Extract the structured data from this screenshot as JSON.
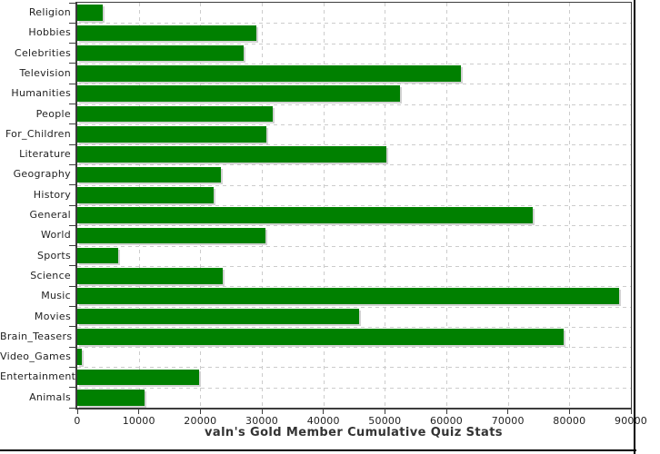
{
  "chart_data": {
    "type": "bar",
    "orientation": "horizontal",
    "title": "valn's Gold Member Cumulative Quiz Stats",
    "categories": [
      "Religion",
      "Hobbies",
      "Celebrities",
      "Television",
      "Humanities",
      "People",
      "For_Children",
      "Literature",
      "Geography",
      "History",
      "General",
      "World",
      "Sports",
      "Science",
      "Music",
      "Movies",
      "Brain_Teasers",
      "Video_Games",
      "Entertainment",
      "Animals"
    ],
    "values": [
      4200,
      29100,
      27100,
      62400,
      52500,
      31800,
      30700,
      50200,
      23400,
      22100,
      74100,
      30600,
      6600,
      23600,
      88000,
      45800,
      79100,
      700,
      19800,
      11000
    ],
    "xlabel": "",
    "ylabel": "",
    "xlim": [
      0,
      90000
    ],
    "x_ticks": [
      0,
      10000,
      20000,
      30000,
      40000,
      50000,
      60000,
      70000,
      80000,
      90000
    ],
    "grid": "dashed-both",
    "legend": "none",
    "bar_color": "#008000",
    "shadow_color": "#d2d2d2",
    "grid_color": "#cccccc",
    "axis_color": "#3c3c3c",
    "label_color": "#1f1f1f",
    "title_color": "#333333",
    "frame_color": "#000000"
  }
}
